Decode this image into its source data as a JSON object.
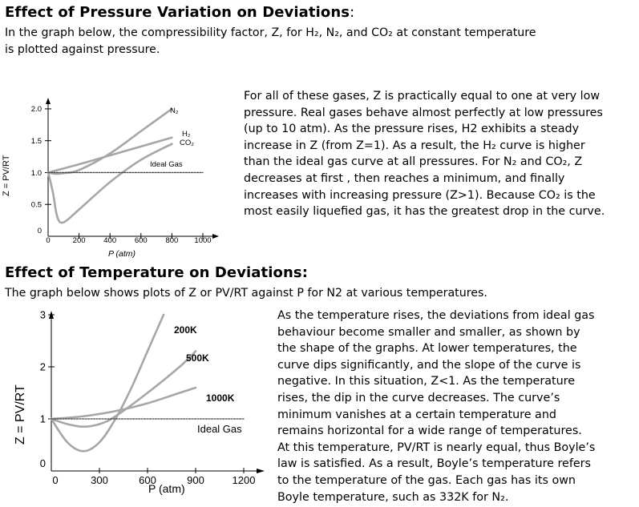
{
  "section1": {
    "heading": "Effect of Pressure Variation on Deviations",
    "heading_colon": ":",
    "intro": "In the graph below, the compressibility factor, Z, for H₂, N₂, and CO₂ at constant temperature is plotted against pressure.",
    "paragraph": "For all of these gases, Z is practically equal to one at very low pressure. Real gases behave almost perfectly at low pressures (up to 10 atm). As the pressure rises, H2 exhibits a steady increase in Z (from Z=1). As a result, the H₂ curve is higher than the ideal gas curve at all pressures. For N₂ and CO₂, Z decreases at first , then reaches a minimum, and finally increases with increasing pressure (Z>1). Because CO₂ is the most easily liquefied gas, it has the greatest drop in the curve."
  },
  "section2": {
    "heading": "Effect of Temperature on Deviations:",
    "intro": "The graph below shows plots of Z or PV/RT against P for N2 at various temperatures.",
    "paragraph": "As the temperature rises, the deviations from ideal gas behaviour become smaller and smaller, as shown by the shape of the graphs. At lower temperatures, the curve dips significantly, and the slope of the curve is negative. In this situation, Z<1. As the temperature rises, the dip in the curve decreases. The curve’s minimum vanishes at a certain temperature and remains horizontal for a wide range of temperatures. At this temperature, PV/RT is nearly equal, thus Boyle’s law is satisfied. As a result, Boyle’s temperature refers to the temperature of the gas. Each gas has its own Boyle temperature, such as 332K for N₂."
  },
  "chart_data": [
    {
      "type": "line",
      "ylabel": "Z = PV/RT",
      "xlabel": "P (atm)",
      "y_ticks": [
        "2.0",
        "1.5",
        "1.0",
        "0.5",
        "0"
      ],
      "x_ticks": [
        "0",
        "200",
        "400",
        "600",
        "800",
        "1000"
      ],
      "xlim": [
        0,
        1000
      ],
      "ylim": [
        0,
        2.2
      ],
      "series": [
        {
          "name": "N₂",
          "x": [
            0,
            50,
            100,
            200,
            400,
            600,
            800
          ],
          "y": [
            1.0,
            0.98,
            0.99,
            1.04,
            1.3,
            1.65,
            2.0
          ]
        },
        {
          "name": "H₂",
          "x": [
            0,
            200,
            400,
            600,
            800
          ],
          "y": [
            1.0,
            1.13,
            1.27,
            1.41,
            1.55
          ]
        },
        {
          "name": "CO₂",
          "x": [
            0,
            30,
            60,
            100,
            200,
            400,
            600,
            800
          ],
          "y": [
            1.0,
            0.7,
            0.3,
            0.22,
            0.42,
            0.85,
            1.2,
            1.45
          ]
        },
        {
          "name": "Ideal Gas",
          "x": [
            0,
            1000
          ],
          "y": [
            1.0,
            1.0
          ]
        }
      ],
      "colors": {
        "curves": "#a6a6a6",
        "ideal": "#444444"
      }
    },
    {
      "type": "line",
      "ylabel": "Z = PV/RT",
      "xlabel": "P (atm)",
      "y_ticks": [
        "3",
        "2",
        "1",
        "0"
      ],
      "x_ticks": [
        "0",
        "300",
        "600",
        "900",
        "1200"
      ],
      "xlim": [
        0,
        1200
      ],
      "ylim": [
        0,
        3.2
      ],
      "series": [
        {
          "name": "200K",
          "x": [
            0,
            100,
            200,
            300,
            400,
            500,
            600,
            700
          ],
          "y": [
            1.0,
            0.55,
            0.38,
            0.55,
            1.0,
            1.6,
            2.3,
            3.0
          ]
        },
        {
          "name": "500K",
          "x": [
            0,
            100,
            200,
            300,
            400,
            600,
            800,
            900
          ],
          "y": [
            1.0,
            0.9,
            0.85,
            0.9,
            1.05,
            1.5,
            2.0,
            2.3
          ]
        },
        {
          "name": "1000K",
          "x": [
            0,
            200,
            400,
            600,
            800,
            900
          ],
          "y": [
            1.0,
            1.05,
            1.15,
            1.3,
            1.5,
            1.6
          ]
        },
        {
          "name": "Ideal Gas",
          "x": [
            0,
            1200
          ],
          "y": [
            1.0,
            1.0
          ]
        }
      ],
      "colors": {
        "curves": "#a6a6a6",
        "ideal": "#444444"
      }
    }
  ]
}
